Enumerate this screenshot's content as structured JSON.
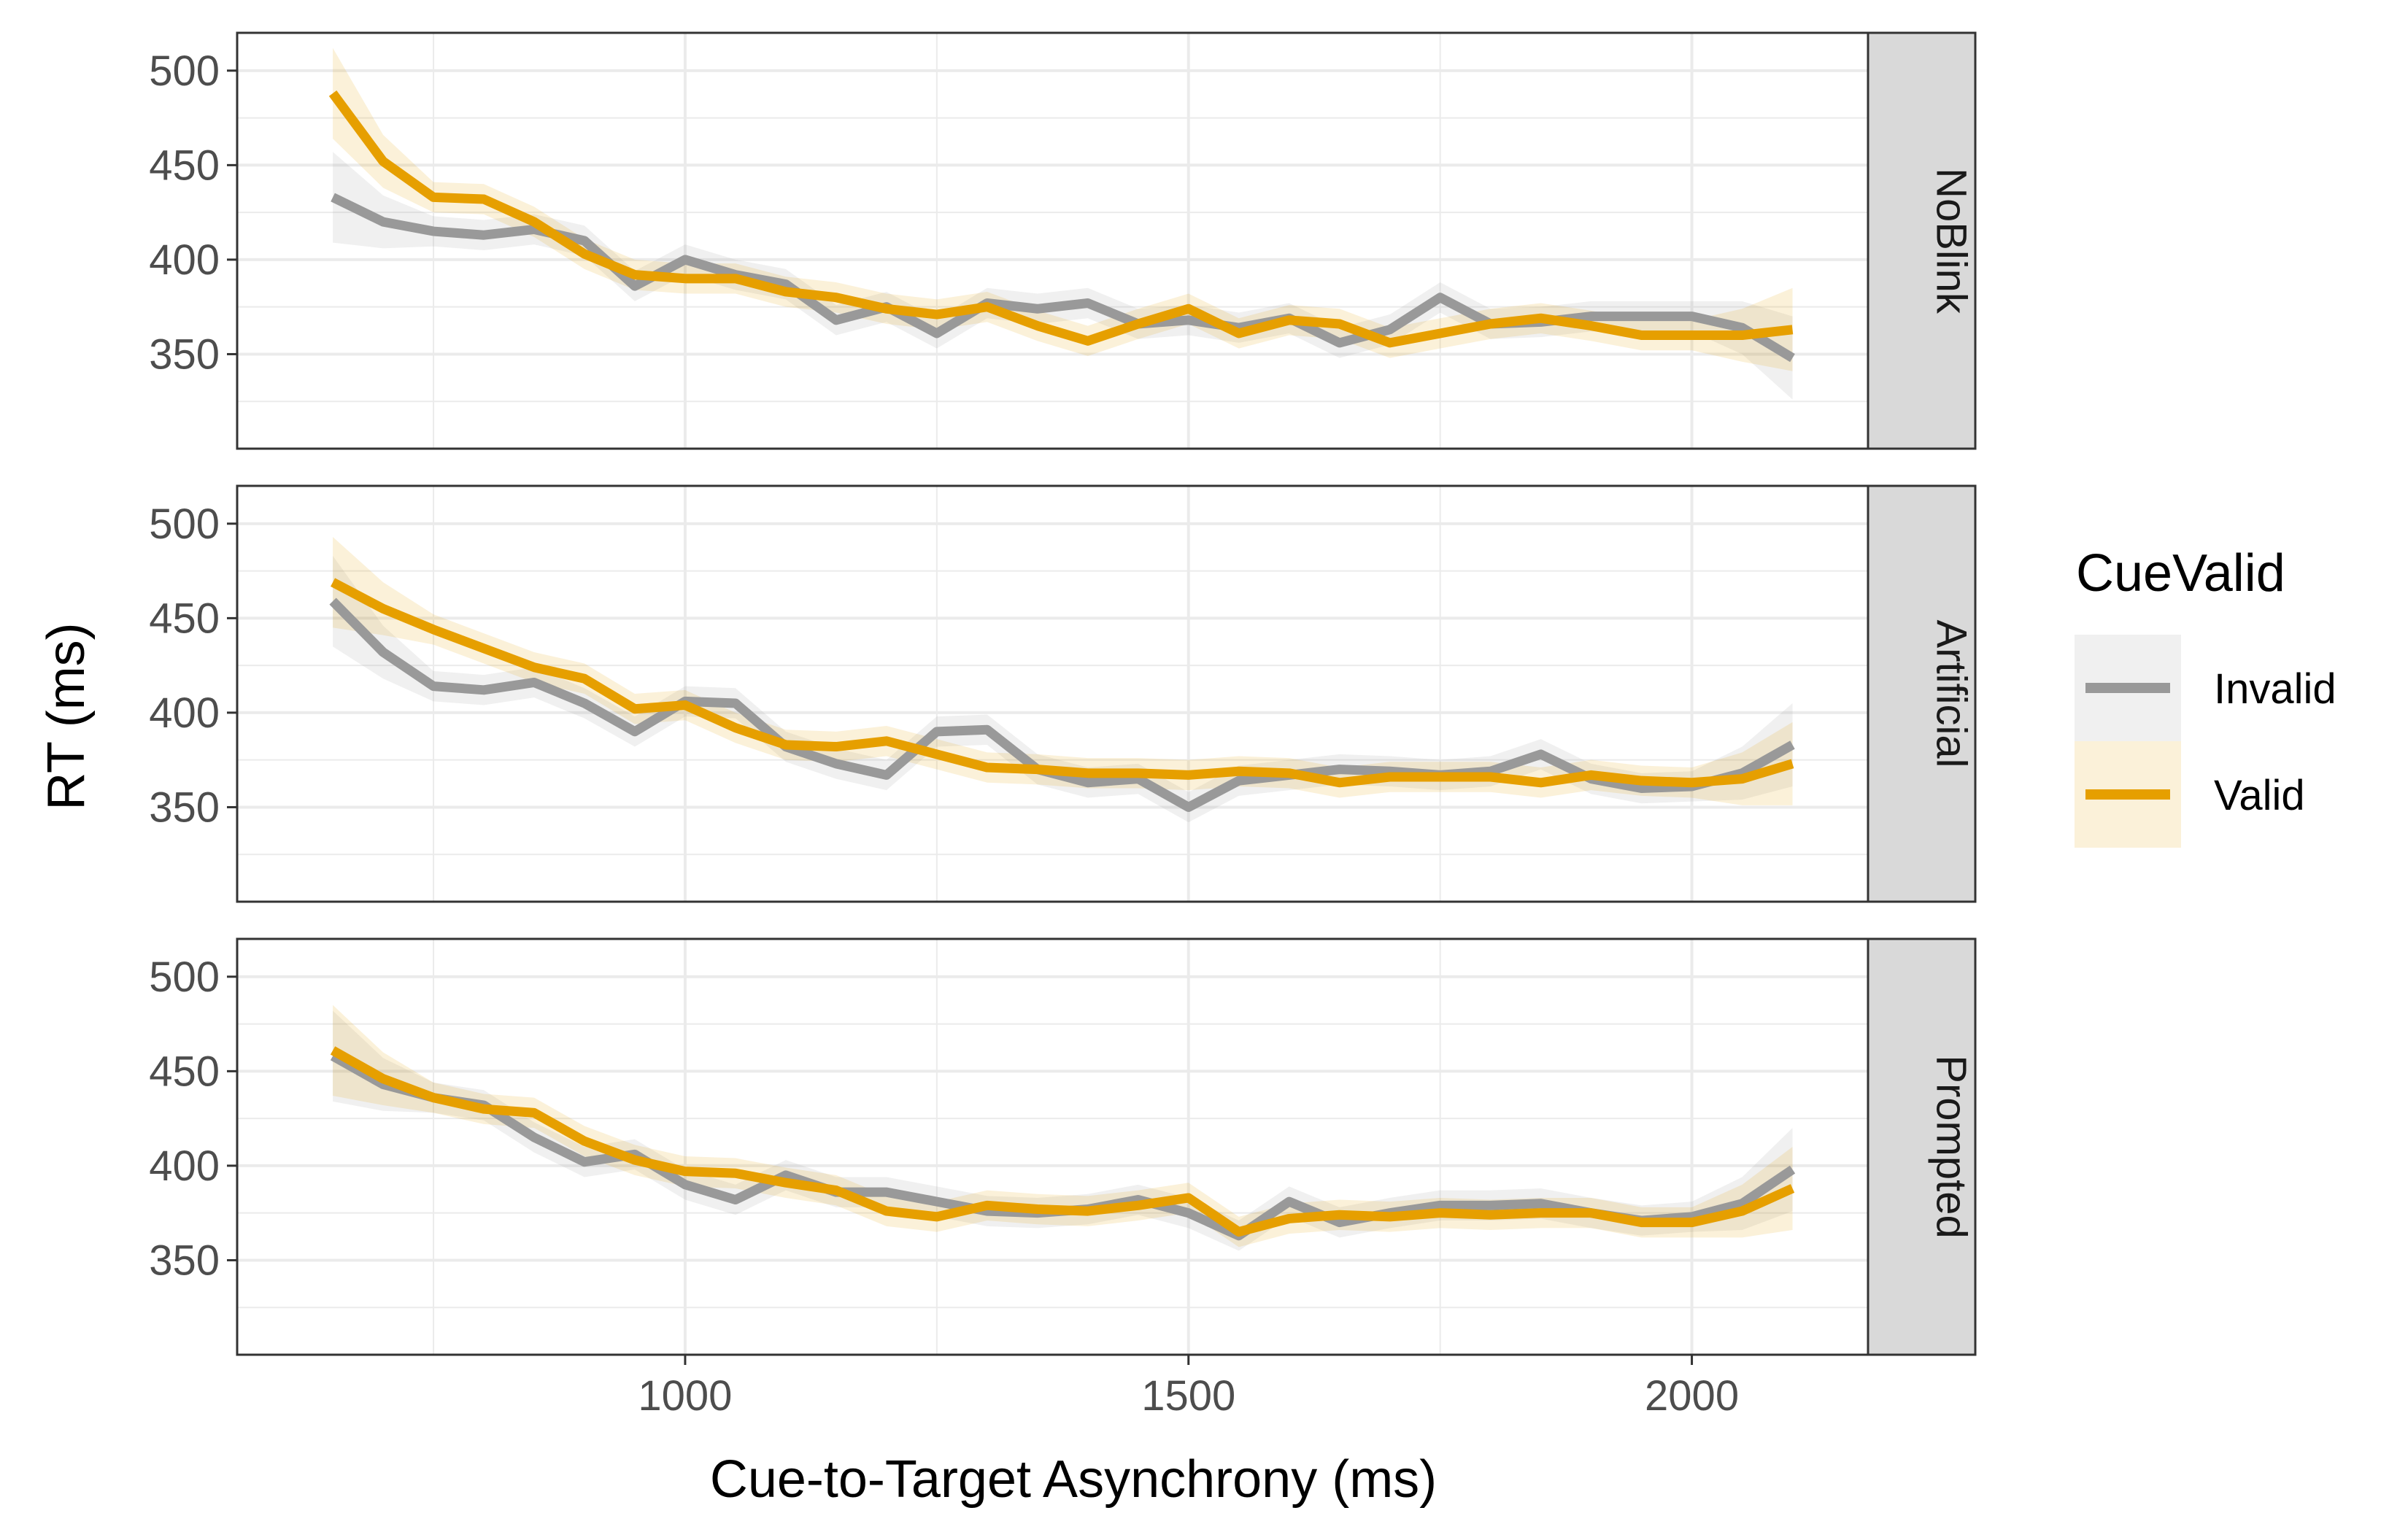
{
  "chart_data": {
    "type": "line",
    "xlabel": "Cue-to-Target Asynchrony (ms)",
    "ylabel": "RT (ms)",
    "xlim": [
      555,
      2175
    ],
    "ylim": [
      300,
      520
    ],
    "x_ticks": [
      1000,
      1500,
      2000
    ],
    "y_ticks": [
      350,
      400,
      450,
      500
    ],
    "grid": true,
    "legend": {
      "title": "CueValid",
      "position": "right",
      "items": [
        {
          "label": "Invalid",
          "color": "#999999"
        },
        {
          "label": "Valid",
          "color": "#E69F00"
        }
      ]
    },
    "x": [
      650,
      700,
      750,
      800,
      850,
      900,
      950,
      1000,
      1050,
      1100,
      1150,
      1200,
      1250,
      1300,
      1350,
      1400,
      1450,
      1500,
      1550,
      1600,
      1650,
      1700,
      1750,
      1800,
      1850,
      1900,
      1950,
      2000,
      2050,
      2100
    ],
    "panels": [
      {
        "strip": "NoBlink",
        "series": [
          {
            "name": "Invalid",
            "values": [
              433,
              420,
              415,
              413,
              416,
              410,
              386,
              400,
              392,
              387,
              368,
              375,
              361,
              377,
              374,
              377,
              366,
              368,
              364,
              369,
              356,
              363,
              380,
              366,
              367,
              370,
              370,
              370,
              364,
              348
            ]
          },
          {
            "name": "Valid",
            "values": [
              488,
              452,
              433,
              432,
              420,
              403,
              392,
              390,
              390,
              383,
              380,
              374,
              371,
              375,
              365,
              357,
              366,
              374,
              361,
              368,
              366,
              356,
              361,
              366,
              369,
              365,
              360,
              360,
              360,
              363
            ]
          }
        ]
      },
      {
        "strip": "Artificial",
        "series": [
          {
            "name": "Invalid",
            "values": [
              459,
              432,
              414,
              412,
              416,
              405,
              390,
              406,
              405,
              382,
              373,
              367,
              390,
              391,
              370,
              363,
              365,
              350,
              364,
              367,
              370,
              369,
              367,
              369,
              378,
              365,
              360,
              361,
              368,
              383
            ]
          },
          {
            "name": "Valid",
            "values": [
              469,
              455,
              444,
              434,
              424,
              418,
              402,
              404,
              392,
              383,
              382,
              385,
              378,
              371,
              370,
              368,
              368,
              367,
              369,
              368,
              363,
              366,
              366,
              366,
              363,
              367,
              364,
              363,
              365,
              373
            ]
          }
        ]
      },
      {
        "strip": "Prompted",
        "series": [
          {
            "name": "Invalid",
            "values": [
              458,
              443,
              436,
              432,
              415,
              402,
              406,
              390,
              382,
              395,
              386,
              386,
              381,
              376,
              375,
              377,
              382,
              375,
              363,
              381,
              370,
              375,
              379,
              379,
              380,
              375,
              371,
              373,
              380,
              398
            ]
          },
          {
            "name": "Valid",
            "values": [
              461,
              446,
              436,
              430,
              428,
              413,
              403,
              397,
              396,
              391,
              387,
              376,
              373,
              379,
              377,
              376,
              379,
              383,
              365,
              372,
              374,
              373,
              375,
              374,
              375,
              375,
              370,
              370,
              376,
              388
            ]
          }
        ]
      }
    ]
  }
}
